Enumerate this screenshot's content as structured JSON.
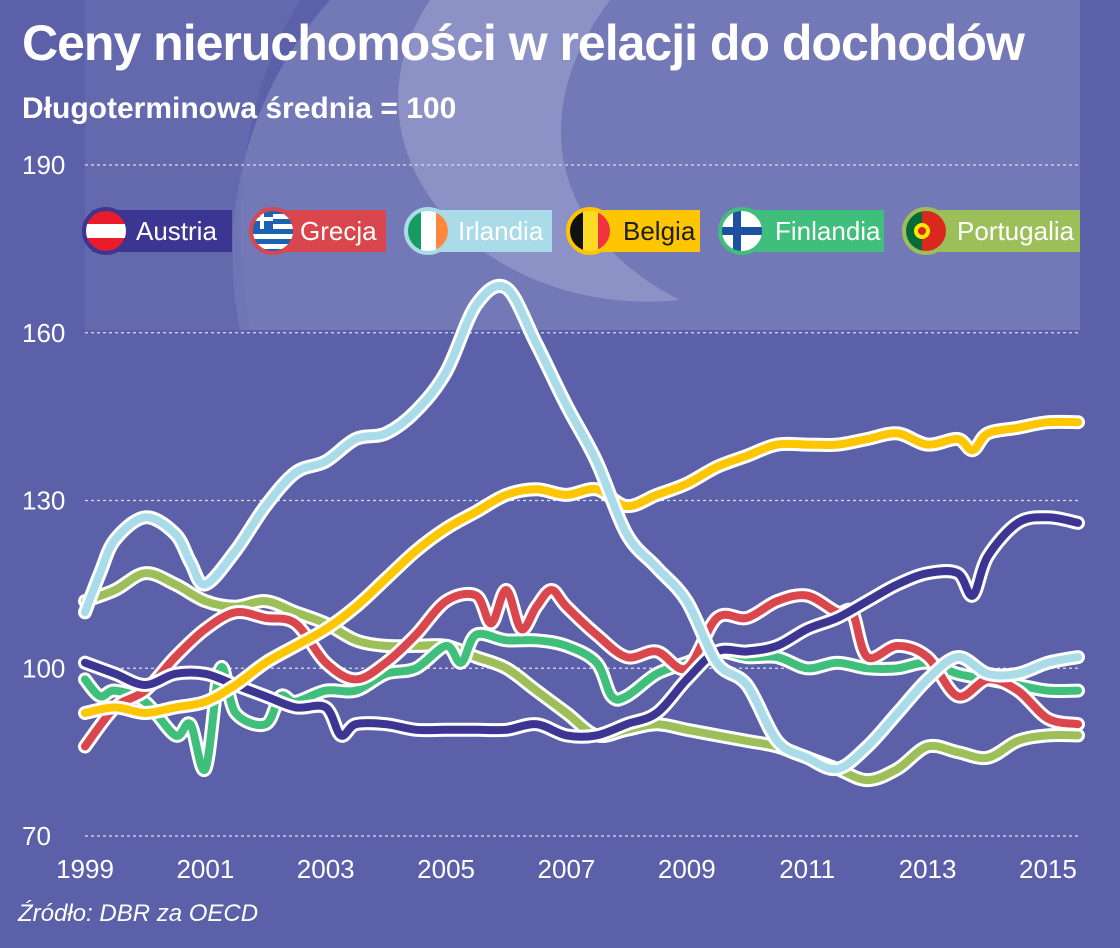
{
  "title": "Ceny nieruchomości w relacji do dochodów",
  "subtitle": "Długoterminowa średnia = 100",
  "source": "Źródło: DBR za OECD",
  "colors": {
    "background": "#5b60a8",
    "grid": "#d9dbef",
    "Austria": "#3c3591",
    "Grecja": "#d9464d",
    "Irlandia": "#a9dbe9",
    "Belgia": "#fdc600",
    "Finlandia": "#3fbe7c",
    "Portugalia": "#9cbf5a"
  },
  "chart_data": {
    "type": "line",
    "title": "Ceny nieruchomości w relacji do dochodów",
    "subtitle": "Długoterminowa średnia = 100",
    "ylim": [
      70,
      190
    ],
    "yticks": [
      70,
      100,
      130,
      160,
      190
    ],
    "xlim": [
      1999,
      2015.5
    ],
    "xticks": [
      1999,
      2001,
      2003,
      2005,
      2007,
      2009,
      2011,
      2013,
      2015
    ],
    "grid": true,
    "legend_position": "top",
    "series": [
      {
        "name": "Austria",
        "x": [
          1999,
          1999.5,
          2000,
          2000.5,
          2001,
          2001.5,
          2002,
          2002.5,
          2003,
          2003.25,
          2003.5,
          2004,
          2004.5,
          2005,
          2005.5,
          2006,
          2006.5,
          2007,
          2007.5,
          2008,
          2008.5,
          2009,
          2009.5,
          2010,
          2010.5,
          2011,
          2011.5,
          2012,
          2012.5,
          2013,
          2013.5,
          2013.75,
          2014,
          2014.5,
          2015,
          2015.5
        ],
        "values": [
          101,
          99,
          97,
          99,
          99,
          97,
          95,
          93,
          93,
          88,
          90,
          90,
          89,
          89,
          89,
          89,
          90,
          88,
          88,
          90,
          92,
          98,
          103,
          103,
          104,
          107,
          109,
          112,
          115,
          117,
          117,
          113,
          120,
          126,
          127,
          126
        ]
      },
      {
        "name": "Grecja",
        "x": [
          1999,
          1999.5,
          2000,
          2000.5,
          2001,
          2001.5,
          2002,
          2002.5,
          2003,
          2003.5,
          2004,
          2004.5,
          2005,
          2005.5,
          2005.75,
          2006,
          2006.25,
          2006.5,
          2006.75,
          2007,
          2007.5,
          2008,
          2008.5,
          2009,
          2009.5,
          2010,
          2010.5,
          2011,
          2011.5,
          2011.75,
          2012,
          2012.5,
          2013,
          2013.5,
          2014,
          2014.5,
          2015,
          2015.5
        ],
        "values": [
          86,
          93,
          96,
          102,
          107,
          110,
          109,
          108,
          101,
          98,
          101,
          106,
          112,
          113,
          108,
          114,
          107,
          111,
          114,
          111,
          106,
          102,
          103,
          100,
          109,
          109,
          112,
          113,
          110,
          110,
          102,
          104,
          102,
          95,
          98,
          96,
          91,
          90
        ]
      },
      {
        "name": "Irlandia",
        "x": [
          1999,
          1999.25,
          1999.5,
          2000,
          2000.5,
          2000.75,
          2001,
          2001.5,
          2002,
          2002.5,
          2003,
          2003.5,
          2004,
          2004.5,
          2005,
          2005.5,
          2006,
          2006.5,
          2007,
          2007.5,
          2008,
          2008.5,
          2009,
          2009.5,
          2010,
          2010.5,
          2011,
          2011.5,
          2012,
          2012.5,
          2013,
          2013.5,
          2014,
          2014.5,
          2015,
          2015.5
        ],
        "values": [
          110,
          117,
          123,
          127,
          124,
          119,
          115,
          121,
          129,
          135,
          137,
          141,
          142,
          146,
          153,
          165,
          168,
          158,
          147,
          137,
          124,
          118,
          112,
          101,
          97,
          87,
          84,
          82,
          86,
          92,
          98,
          102,
          99,
          99,
          101,
          102
        ]
      },
      {
        "name": "Belgia",
        "x": [
          1999,
          1999.5,
          2000,
          2000.5,
          2001,
          2001.5,
          2002,
          2002.5,
          2003,
          2003.5,
          2004,
          2004.5,
          2005,
          2005.5,
          2006,
          2006.5,
          2007,
          2007.5,
          2008,
          2008.5,
          2009,
          2009.5,
          2010,
          2010.5,
          2011,
          2011.5,
          2012,
          2012.5,
          2013,
          2013.5,
          2013.75,
          2014,
          2014.5,
          2015,
          2015.5
        ],
        "values": [
          92,
          93,
          92,
          93,
          94,
          97,
          101,
          104,
          107,
          111,
          116,
          121,
          125,
          128,
          131,
          132,
          131,
          132,
          129,
          131,
          133,
          136,
          138,
          140,
          140,
          140,
          141,
          142,
          140,
          141,
          139,
          142,
          143,
          144,
          144
        ]
      },
      {
        "name": "Finlandia",
        "x": [
          1999,
          1999.25,
          1999.5,
          2000,
          2000.5,
          2000.75,
          2001,
          2001.25,
          2001.5,
          2002,
          2002.25,
          2002.5,
          2003,
          2003.5,
          2004,
          2004.5,
          2005,
          2005.25,
          2005.5,
          2006,
          2006.5,
          2007,
          2007.5,
          2007.75,
          2008,
          2008.5,
          2009,
          2009.5,
          2010,
          2010.5,
          2011,
          2011.5,
          2012,
          2012.5,
          2013,
          2013.5,
          2014,
          2014.5,
          2015,
          2015.5
        ],
        "values": [
          98,
          95,
          96,
          94,
          88,
          90,
          82,
          100,
          92,
          90,
          95,
          94,
          96,
          96,
          99,
          100,
          104,
          101,
          106,
          105,
          105,
          104,
          101,
          95,
          95,
          99,
          101,
          103,
          102,
          102,
          100,
          101,
          100,
          100,
          101,
          99,
          98,
          97,
          96,
          96
        ]
      },
      {
        "name": "Portugalia",
        "x": [
          1999,
          1999.5,
          2000,
          2000.5,
          2001,
          2001.5,
          2002,
          2002.5,
          2003,
          2003.5,
          2004,
          2004.5,
          2005,
          2005.5,
          2006,
          2006.5,
          2007,
          2007.5,
          2008,
          2008.5,
          2009,
          2009.5,
          2010,
          2010.5,
          2011,
          2011.5,
          2012,
          2012.5,
          2013,
          2013.5,
          2014,
          2014.5,
          2015,
          2015.5
        ],
        "values": [
          112,
          114,
          117,
          115,
          112,
          111,
          112,
          110,
          108,
          105,
          104,
          104,
          104,
          102,
          100,
          96,
          92,
          88,
          89,
          90,
          89,
          88,
          87,
          86,
          84,
          82,
          80,
          82,
          86,
          85,
          84,
          87,
          88,
          88
        ]
      }
    ]
  }
}
